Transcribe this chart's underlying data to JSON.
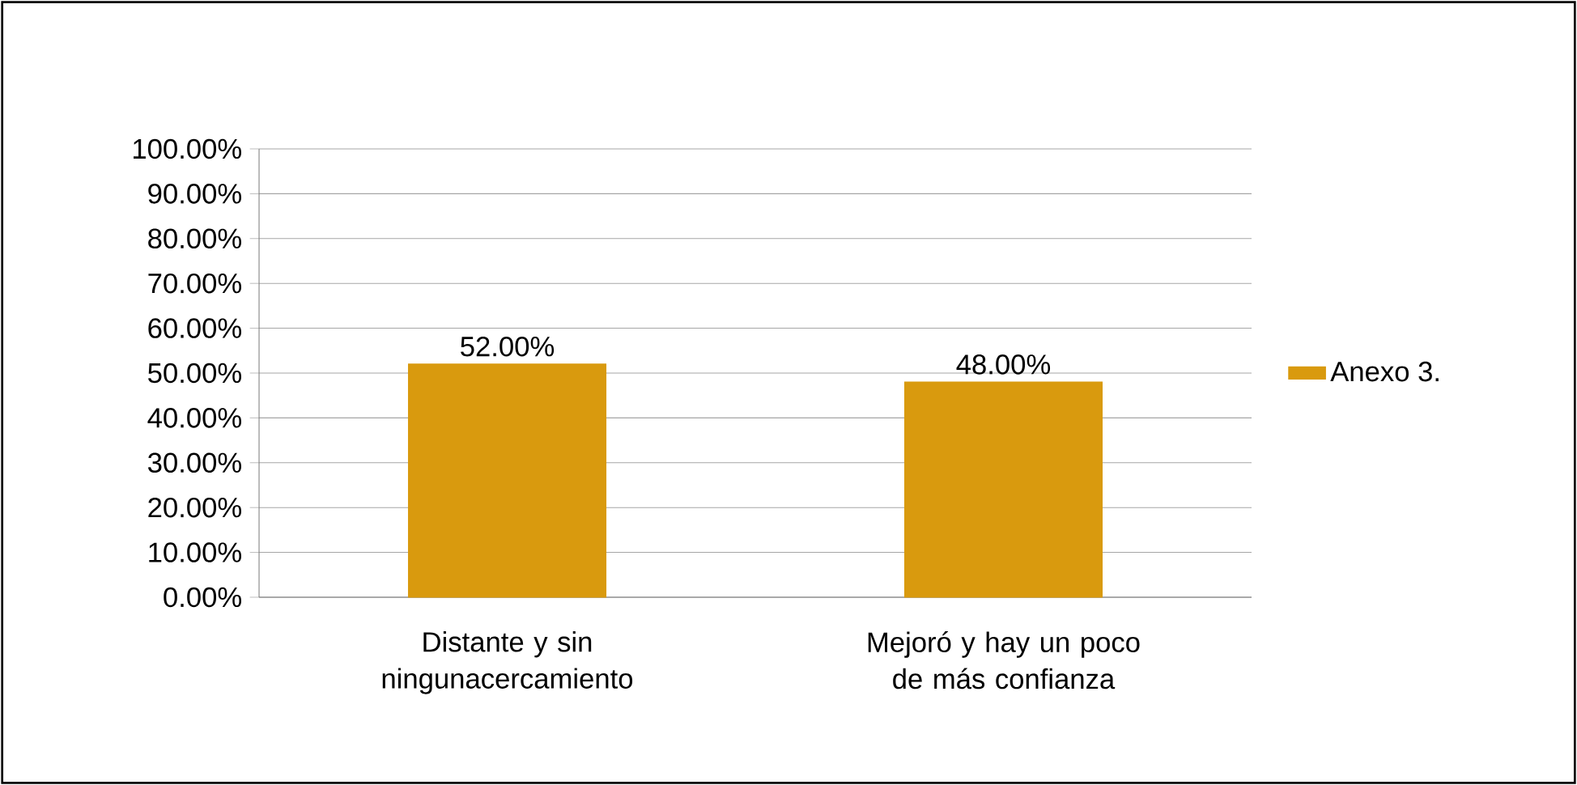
{
  "chart_data": {
    "type": "bar",
    "categories": [
      "Distante y sin ningunacercamiento",
      "Mejoró y hay un poco de más confianza"
    ],
    "series": [
      {
        "name": "Anexo 3.",
        "color": "#d99a0e",
        "values": [
          52,
          48
        ],
        "value_labels": [
          "52.00%",
          "48.00%"
        ]
      }
    ],
    "ylim": [
      0,
      100
    ],
    "yticks": [
      {
        "value": 0,
        "label": "0.00%"
      },
      {
        "value": 10,
        "label": "10.00%"
      },
      {
        "value": 20,
        "label": "20.00%"
      },
      {
        "value": 30,
        "label": "30.00%"
      },
      {
        "value": 40,
        "label": "40.00%"
      },
      {
        "value": 50,
        "label": "50.00%"
      },
      {
        "value": 60,
        "label": "60.00%"
      },
      {
        "value": 70,
        "label": "70.00%"
      },
      {
        "value": 80,
        "label": "80.00%"
      },
      {
        "value": 90,
        "label": "90.00%"
      },
      {
        "value": 100,
        "label": "100.00%"
      }
    ],
    "grid": "y",
    "legend": "right"
  }
}
